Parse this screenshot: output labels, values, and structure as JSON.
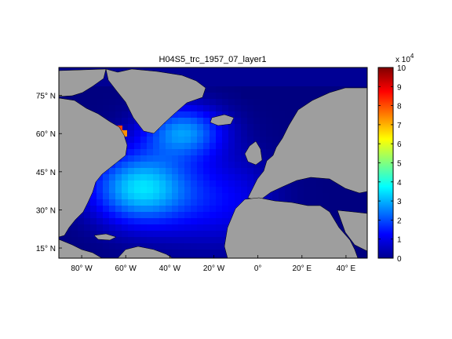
{
  "title": "H04S5_trc_1957_07_layer1",
  "map": {
    "lon_ticks": [
      {
        "value": -80,
        "label": "80° W"
      },
      {
        "value": -60,
        "label": "60° W"
      },
      {
        "value": -40,
        "label": "40° W"
      },
      {
        "value": -20,
        "label": "20° W"
      },
      {
        "value": 0,
        "label": "0°"
      },
      {
        "value": 20,
        "label": "20° E"
      },
      {
        "value": 40,
        "label": "40° E"
      }
    ],
    "lat_ticks": [
      {
        "value": 75,
        "label": "75° N"
      },
      {
        "value": 60,
        "label": "60° N"
      },
      {
        "value": 45,
        "label": "45° N"
      },
      {
        "value": 30,
        "label": "30° N"
      },
      {
        "value": 15,
        "label": "15° N"
      }
    ],
    "land_color": "#9e9e9e",
    "nodata_color": "#ffffff"
  },
  "colorbar": {
    "exponent_label": "x 10",
    "exponent_power": "4",
    "ticks": [
      "0",
      "1",
      "2",
      "3",
      "4",
      "5",
      "6",
      "7",
      "8",
      "9",
      "10"
    ],
    "colormap": "jet"
  }
}
